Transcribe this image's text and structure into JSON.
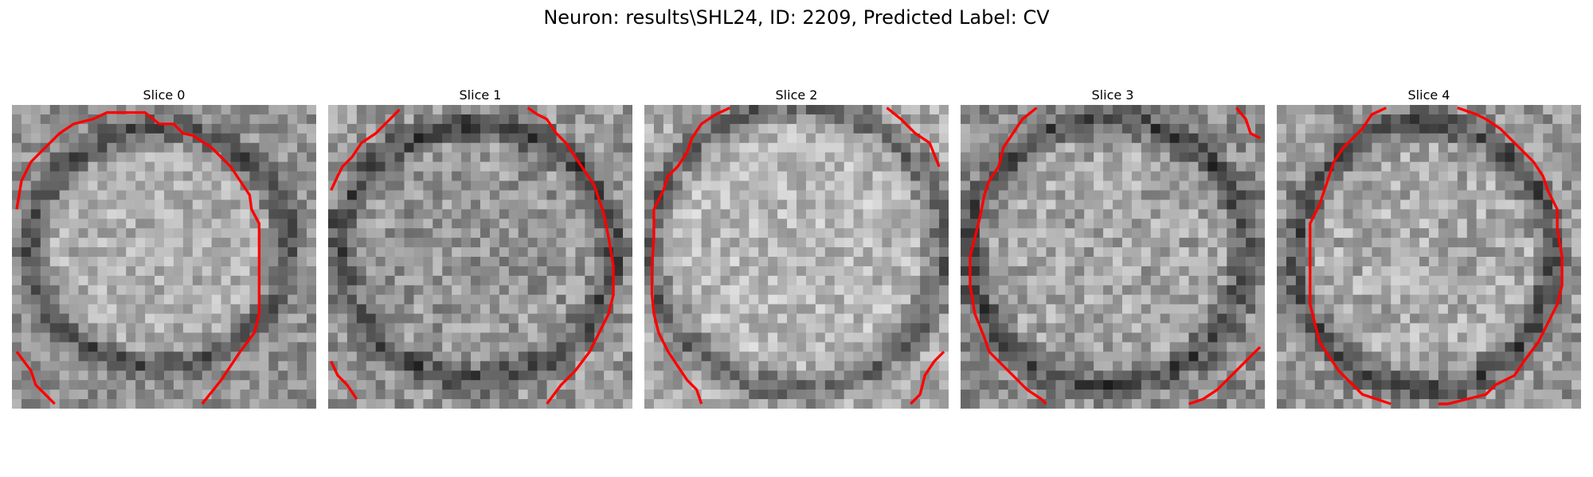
{
  "figure": {
    "title": "Neuron: results\\SHL24, ID: 2209, Predicted Label: CV"
  },
  "panels": [
    {
      "title": "Slice 0"
    },
    {
      "title": "Slice 1"
    },
    {
      "title": "Slice 2"
    },
    {
      "title": "Slice 3"
    },
    {
      "title": "Slice 4"
    }
  ],
  "colors": {
    "contour": "#ff0000",
    "background": "#ffffff",
    "colormap": "gray"
  }
}
